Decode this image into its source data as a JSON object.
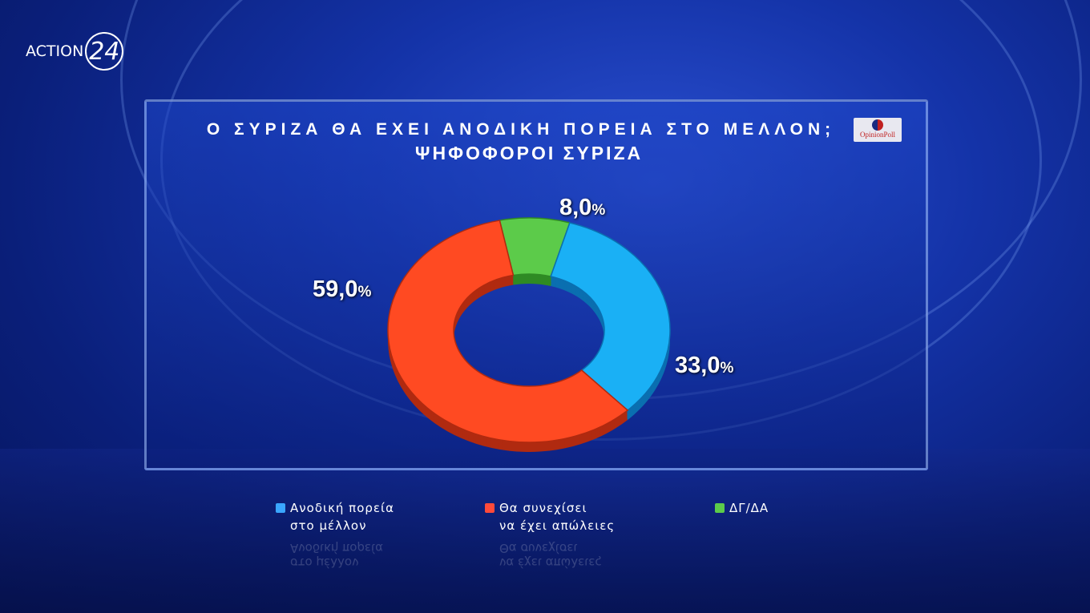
{
  "channel": {
    "logo_text": "ACTION",
    "logo_number": "24"
  },
  "pollster": "OpinionPoll",
  "colors": {
    "blue": "#1ab0f5",
    "red": "#ff4a22",
    "green": "#5ccb4a"
  },
  "chart_data": {
    "type": "pie",
    "donut": true,
    "title": "Ο ΣΥΡΙΖΑ ΘΑ ΕΧΕΙ ΑΝΟΔΙΚΗ ΠΟΡΕΙΑ ΣΤΟ ΜΕΛΛΟΝ;",
    "subtitle": "ΨΗΦΟΦΟΡΟΙ ΣΥΡΙΖΑ",
    "legend_placement": "bottom",
    "slices": [
      {
        "name": "Ανοδική πορεία στο μέλλον",
        "name_line1": "Ανοδική πορεία",
        "name_line2": "στο μέλλον",
        "value": 33.0,
        "label": "33,0",
        "color": "#1ab0f5"
      },
      {
        "name": "Θα συνεχίσει να έχει απώλειες",
        "name_line1": "Θα συνεχίσει",
        "name_line2": "να έχει απώλειες",
        "value": 59.0,
        "label": "59,0",
        "color": "#ff4a22"
      },
      {
        "name": "ΔΓ/ΔΑ",
        "name_line1": "ΔΓ/ΔΑ",
        "name_line2": "",
        "value": 8.0,
        "label": "8,0",
        "color": "#5ccb4a"
      }
    ],
    "unit": "%"
  }
}
